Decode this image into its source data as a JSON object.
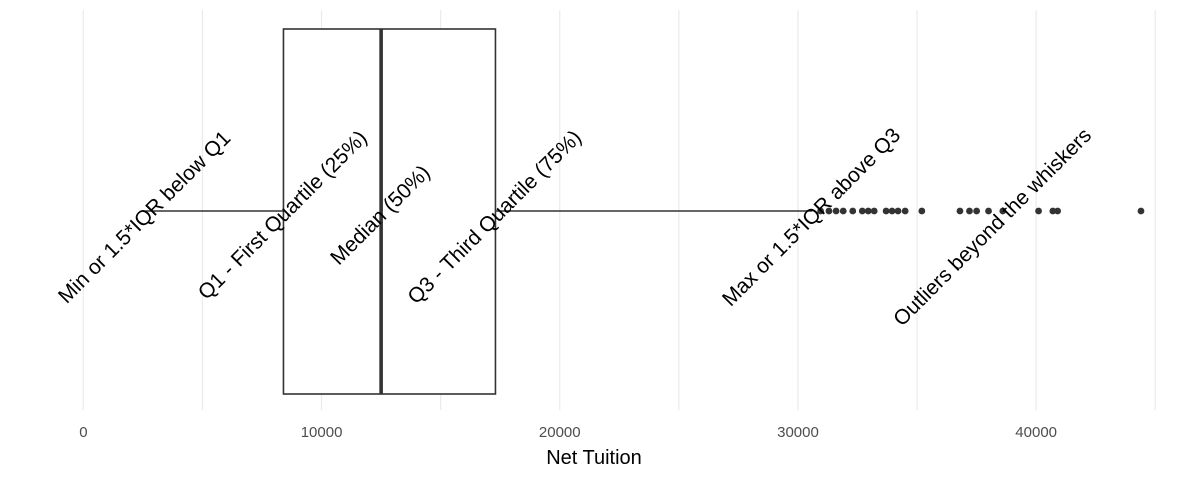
{
  "chart_data": {
    "type": "boxplot",
    "title": "",
    "xlabel": "Net Tuition",
    "ylabel": "",
    "xlim": [
      -3500,
      46500
    ],
    "x_ticks": [
      0,
      10000,
      20000,
      30000,
      40000
    ],
    "x_tick_labels": [
      "0",
      "10000",
      "20000",
      "30000",
      "40000"
    ],
    "minor_gridlines": [
      5000,
      15000,
      25000,
      35000,
      45000
    ],
    "grid": true,
    "box": {
      "whisker_low": 2600,
      "q1": 8400,
      "median": 12500,
      "q3": 17300,
      "whisker_high": 30600
    },
    "outliers": [
      30950,
      31300,
      31600,
      31900,
      32300,
      32700,
      32950,
      33200,
      33700,
      33950,
      34200,
      34500,
      35200,
      36800,
      37200,
      37500,
      38000,
      38600,
      40100,
      40700,
      40900,
      44400
    ],
    "annotations": [
      {
        "text": "Min or 1.5*IQR below Q1",
        "x": 2600
      },
      {
        "text": "Q1 - First Quartile (25%)",
        "x": 8400
      },
      {
        "text": "Median (50%)",
        "x": 12500
      },
      {
        "text": "Q3 - Third Quartile (75%)",
        "x": 17300
      },
      {
        "text": "Max or 1.5*IQR above Q3",
        "x": 30600
      },
      {
        "text": "Outliers beyond the whiskers",
        "x": 38200
      }
    ],
    "colors": {
      "box_stroke": "#333333",
      "outlier": "#333333",
      "grid": "#ebebeb"
    }
  }
}
